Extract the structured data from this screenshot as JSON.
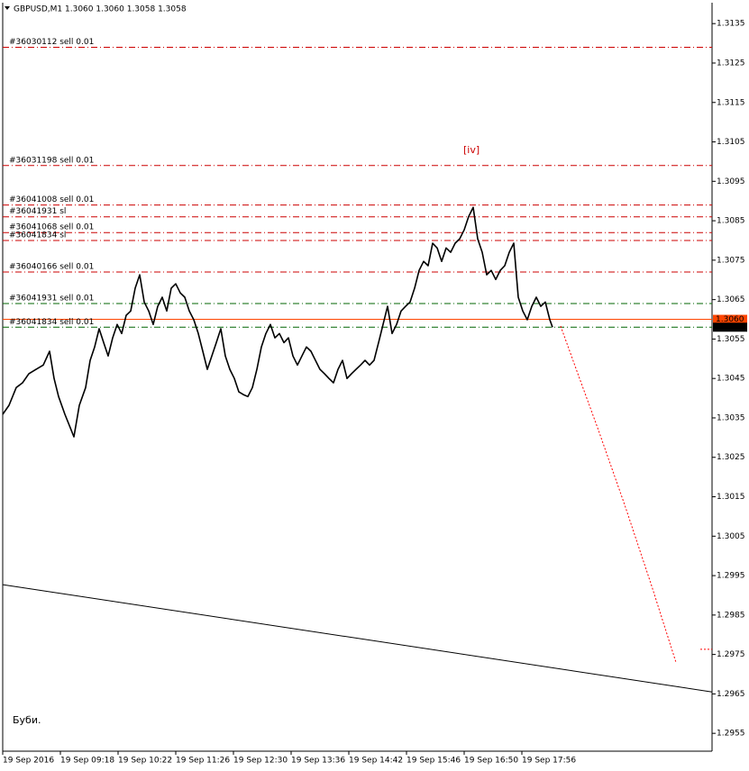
{
  "chart_data": {
    "type": "line",
    "title": "GBPUSD,M1  1.3060 1.3060 1.3058 1.3058",
    "xlim": [
      0,
      787
    ],
    "xticks": [
      {
        "value": 0,
        "label": "19 Sep 2016"
      },
      {
        "value": 64,
        "label": "19 Sep 09:18"
      },
      {
        "value": 128,
        "label": "19 Sep 10:22"
      },
      {
        "value": 192,
        "label": "19 Sep 11:26"
      },
      {
        "value": 256,
        "label": "19 Sep 12:30"
      },
      {
        "value": 320,
        "label": "19 Sep 13:36"
      },
      {
        "value": 384,
        "label": "19 Sep 14:42"
      },
      {
        "value": 448,
        "label": "19 Sep 15:46"
      },
      {
        "value": 512,
        "label": "19 Sep 16:50"
      },
      {
        "value": 576,
        "label": "19 Sep 17:56"
      }
    ],
    "ylim": [
      1.29507,
      1.31403
    ],
    "yticks": [
      1.3135,
      1.3125,
      1.3115,
      1.3105,
      1.3095,
      1.3085,
      1.3075,
      1.3065,
      1.3055,
      1.3045,
      1.3035,
      1.3025,
      1.3015,
      1.3005,
      1.2995,
      1.2985,
      1.2975,
      1.2965,
      1.2955
    ],
    "grid": false,
    "series": [
      {
        "color": "#000000",
        "style": "solid",
        "width": 1.6,
        "x": [
          0,
          7,
          15,
          22,
          29,
          37,
          45,
          52,
          57,
          62,
          69,
          75,
          79,
          85,
          92,
          97,
          102,
          107,
          112,
          117,
          122,
          127,
          132,
          137,
          142,
          147,
          152,
          157,
          162,
          167,
          172,
          177,
          182,
          187,
          192,
          197,
          202,
          207,
          212,
          217,
          222,
          227,
          232,
          237,
          242,
          247,
          252,
          257,
          262,
          267,
          272,
          277,
          282,
          287,
          292,
          297,
          302,
          307,
          312,
          317,
          322,
          327,
          332,
          337,
          342,
          347,
          352,
          357,
          362,
          367,
          372,
          377,
          382,
          387,
          392,
          397,
          402,
          407,
          412,
          417,
          422,
          427,
          432,
          437,
          442,
          447,
          452,
          457,
          462,
          467,
          472,
          477,
          482,
          487,
          492,
          497,
          502,
          507,
          512,
          517,
          522,
          527,
          532,
          537,
          542,
          547,
          552,
          557,
          562,
          567,
          572,
          577,
          582,
          587,
          592,
          597,
          602,
          607,
          610
        ],
        "values": [
          1.30359,
          1.30382,
          1.30427,
          1.30439,
          1.30462,
          1.30473,
          1.30484,
          1.30519,
          1.3045,
          1.30404,
          1.30359,
          1.30325,
          1.30302,
          1.30382,
          1.30427,
          1.30496,
          1.3053,
          1.30576,
          1.30541,
          1.30507,
          1.30553,
          1.30587,
          1.30564,
          1.3061,
          1.30621,
          1.30679,
          1.30713,
          1.30644,
          1.30621,
          1.30587,
          1.30633,
          1.30656,
          1.30621,
          1.30679,
          1.3069,
          1.30667,
          1.30656,
          1.30621,
          1.30599,
          1.30564,
          1.30519,
          1.30473,
          1.30507,
          1.30541,
          1.30576,
          1.30507,
          1.30473,
          1.3045,
          1.30416,
          1.30409,
          1.30404,
          1.30427,
          1.30473,
          1.3053,
          1.30564,
          1.30587,
          1.30553,
          1.30564,
          1.30541,
          1.30553,
          1.30507,
          1.30484,
          1.30507,
          1.3053,
          1.30519,
          1.30496,
          1.30473,
          1.30462,
          1.3045,
          1.30439,
          1.30473,
          1.30496,
          1.3045,
          1.30462,
          1.30473,
          1.30484,
          1.30496,
          1.30484,
          1.30496,
          1.30541,
          1.30587,
          1.30633,
          1.30564,
          1.30587,
          1.30621,
          1.30633,
          1.30644,
          1.30679,
          1.30724,
          1.30747,
          1.30736,
          1.30793,
          1.30781,
          1.30747,
          1.30781,
          1.3077,
          1.30793,
          1.30804,
          1.30827,
          1.30861,
          1.30884,
          1.30804,
          1.3077,
          1.30713,
          1.30724,
          1.30701,
          1.30724,
          1.30736,
          1.3077,
          1.30793,
          1.30656,
          1.30621,
          1.30599,
          1.30633,
          1.30656,
          1.30633,
          1.30644,
          1.30599,
          1.3058
        ]
      },
      {
        "color": "#000000",
        "style": "solid",
        "width": 1,
        "x": [
          0,
          787
        ],
        "values": [
          1.29927,
          1.29655
        ]
      },
      {
        "color": "#ff0000",
        "style": "dotted",
        "width": 1,
        "x": [
          619,
          640,
          660,
          690,
          720,
          747
        ],
        "values": [
          1.30583,
          1.3045,
          1.30325,
          1.3013,
          1.29924,
          1.2973
        ]
      },
      {
        "color": "#ff0000",
        "style": "dotted",
        "width": 1,
        "x": [
          774,
          787
        ],
        "values": [
          1.29763,
          1.29763
        ]
      }
    ],
    "levels": [
      {
        "label": "#36030112 sell 0.01",
        "value": 1.3129,
        "color": "#cc0000"
      },
      {
        "label": "#36031198 sell 0.01",
        "value": 1.3099,
        "color": "#cc0000"
      },
      {
        "label": "#36041008 sell 0.01",
        "value": 1.3089,
        "color": "#cc0000"
      },
      {
        "label": "#36041931 sl",
        "value": 1.3086,
        "color": "#cc0000"
      },
      {
        "label": "#36041068 sell 0.01",
        "value": 1.3082,
        "color": "#cc0000"
      },
      {
        "label": "#36041834 sl",
        "value": 1.308,
        "color": "#cc0000"
      },
      {
        "label": "#36040166 sell 0.01",
        "value": 1.3072,
        "color": "#cc0000"
      },
      {
        "label": "#36041931 sell 0.01",
        "value": 1.3064,
        "color": "#006400"
      },
      {
        "label": "#36041834 sell 0.01",
        "value": 1.3058,
        "color": "#006400"
      }
    ],
    "price_tags": [
      {
        "value": 1.306,
        "label": "1.3060",
        "color": "#ff4500",
        "line": true
      },
      {
        "value": 1.3058,
        "label": "1.3058",
        "color": "#000000",
        "line": false
      }
    ],
    "annotations": [
      {
        "text": "[iv]",
        "color": "#cc0000"
      },
      {
        "text": "Буби.",
        "color": "#000000"
      }
    ]
  }
}
